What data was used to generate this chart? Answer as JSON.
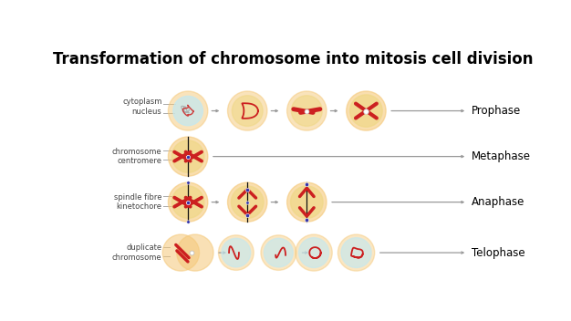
{
  "title": "Transformation of chromosome into mitosis cell division",
  "title_fontsize": 12,
  "title_fontweight": "bold",
  "bg_color": "#ffffff",
  "row_labels": [
    "cytoplasm\nnucleus",
    "chromosome\ncentromere",
    "spindle fibre\nkinetochore",
    "duplicate\nchromosome"
  ],
  "phase_labels": [
    "Prophase",
    "Metaphase",
    "Anaphase",
    "Telophase"
  ],
  "cell_outer_color": "#f5c878",
  "cell_inner_color_blue": "#c5e8ef",
  "cell_inner_color_yellow": "#f0d888",
  "chromosome_color": "#cc2020",
  "spindle_color": "#3333aa",
  "arrow_color": "#999999",
  "label_color": "#444444",
  "label_fontsize": 6.0,
  "phase_fontsize": 8.5
}
